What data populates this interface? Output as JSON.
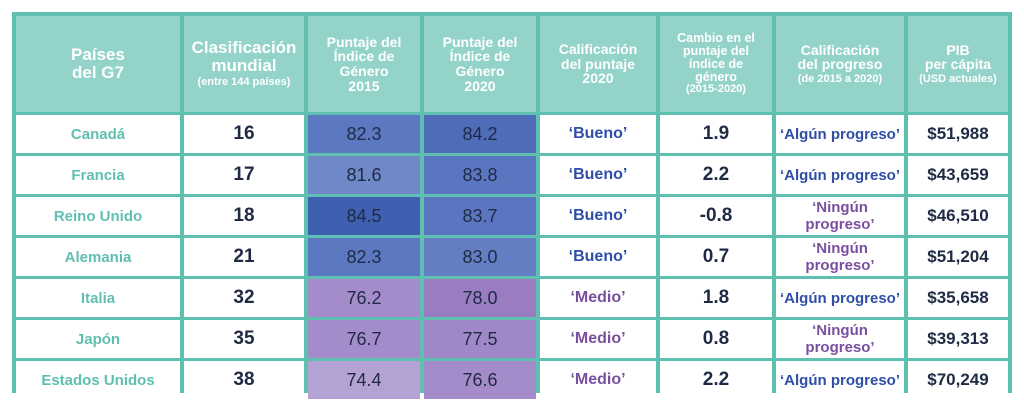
{
  "headers": {
    "country": {
      "l1": "Países",
      "l2": "del G7"
    },
    "rank": {
      "l1": "Clasificación",
      "l2": "mundial",
      "note": "(entre 144 países)"
    },
    "s2015": {
      "l1": "Puntaje del",
      "l2": "Índice de",
      "l3": "Género",
      "l4": "2015"
    },
    "s2020": {
      "l1": "Puntaje del",
      "l2": "Índice de",
      "l3": "Género",
      "l4": "2020"
    },
    "rating": {
      "l1": "Calificación",
      "l2": "del puntaje",
      "l3": "2020"
    },
    "change": {
      "l1": "Cambio en el",
      "l2": "puntaje del",
      "l3": "índice de",
      "l4": "género",
      "note": "(2015-2020)"
    },
    "progress": {
      "l1": "Calificación",
      "l2": "del progreso",
      "note": "(de 2015 a 2020)"
    },
    "gdp": {
      "l1": "PIB",
      "l2": "per cápita",
      "note": "(USD actuales)"
    }
  },
  "colors": {
    "frame": "#5fbfb0",
    "header": "#93d3ca",
    "score_blue_dark": "#3f5fb0",
    "score_blue": "#5c78c0",
    "score_blue_light": "#6e88c8",
    "score_purple_dark": "#9a7cc0",
    "score_purple": "#a48ccb",
    "score_purple_light": "#b3a2d3"
  },
  "rows": [
    {
      "country": "Canadá",
      "rank": "16",
      "s2015": "82.3",
      "s2020": "84.2",
      "rating": "‘Bueno’",
      "change": "1.9",
      "progress": "‘Algún progreso’",
      "gdp": "$51,988",
      "rating_class": "good",
      "progress_class": "prog-some",
      "c2015": "#5c78c0",
      "c2020": "#4e6cb8"
    },
    {
      "country": "Francia",
      "rank": "17",
      "s2015": "81.6",
      "s2020": "83.8",
      "rating": "‘Bueno’",
      "change": "2.2",
      "progress": "‘Algún progreso’",
      "gdp": "$43,659",
      "rating_class": "good",
      "progress_class": "prog-some",
      "c2015": "#6e88c8",
      "c2020": "#5a76c0"
    },
    {
      "country": "Reino Unido",
      "rank": "18",
      "s2015": "84.5",
      "s2020": "83.7",
      "rating": "‘Bueno’",
      "change": "-0.8",
      "progress": "‘Ningún progreso’",
      "gdp": "$46,510",
      "rating_class": "good",
      "progress_class": "prog-none",
      "c2015": "#3f5fb0",
      "c2020": "#5a76c0"
    },
    {
      "country": "Alemania",
      "rank": "21",
      "s2015": "82.3",
      "s2020": "83.0",
      "rating": "‘Bueno’",
      "change": "0.7",
      "progress": "‘Ningún progreso’",
      "gdp": "$51,204",
      "rating_class": "good",
      "progress_class": "prog-none",
      "c2015": "#5c78c0",
      "c2020": "#647ec3"
    },
    {
      "country": "Italia",
      "rank": "32",
      "s2015": "76.2",
      "s2020": "78.0",
      "rating": "‘Medio’",
      "change": "1.8",
      "progress": "‘Algún progreso’",
      "gdp": "$35,658",
      "rating_class": "medium",
      "progress_class": "prog-some",
      "c2015": "#a48ccb",
      "c2020": "#9a7cc0"
    },
    {
      "country": "Japón",
      "rank": "35",
      "s2015": "76.7",
      "s2020": "77.5",
      "rating": "‘Medio’",
      "change": "0.8",
      "progress": "‘Ningún progreso’",
      "gdp": "$39,313",
      "rating_class": "medium",
      "progress_class": "prog-none",
      "c2015": "#a48ccb",
      "c2020": "#a088c8"
    },
    {
      "country": "Estados Unidos",
      "rank": "38",
      "s2015": "74.4",
      "s2020": "76.6",
      "rating": "‘Medio’",
      "change": "2.2",
      "progress": "‘Algún progreso’",
      "gdp": "$70,249",
      "rating_class": "medium",
      "progress_class": "prog-some",
      "c2015": "#b3a2d3",
      "c2020": "#a48ccb"
    }
  ]
}
